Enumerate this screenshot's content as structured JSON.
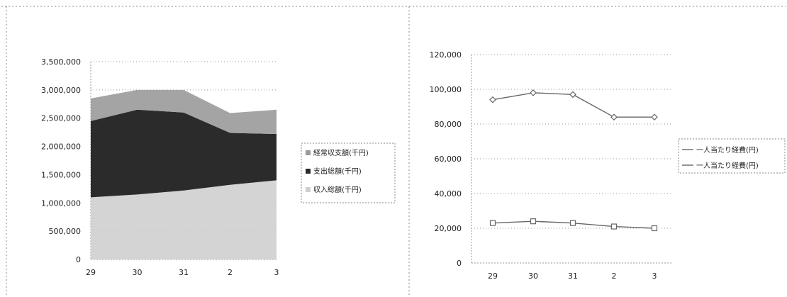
{
  "chart_data": [
    {
      "type": "area",
      "stacked": true,
      "categories": [
        "29",
        "30",
        "31",
        "2",
        "3"
      ],
      "ylim": [
        0,
        3500000
      ],
      "yticks": [
        "0",
        "500,000",
        "1,000,000",
        "1,500,000",
        "2,000,000",
        "2,500,000",
        "3,000,000",
        "3,500,000"
      ],
      "grid": true,
      "legend_position": "right",
      "series": [
        {
          "name": "収入総額(千円)",
          "values": [
            1100000,
            1150000,
            1220000,
            1320000,
            1400000
          ],
          "color": "#cfcfcf"
        },
        {
          "name": "支出総額(千円)",
          "values": [
            1350000,
            1500000,
            1380000,
            920000,
            820000
          ],
          "color": "#2b2b2b"
        },
        {
          "name": "経常収支額(千円)",
          "values": [
            400000,
            350000,
            400000,
            350000,
            430000
          ],
          "color": "#9a9a9a"
        }
      ]
    },
    {
      "type": "line",
      "categories": [
        "29",
        "30",
        "31",
        "2",
        "3"
      ],
      "ylim": [
        0,
        120000
      ],
      "yticks": [
        "0",
        "20,000",
        "40,000",
        "60,000",
        "80,000",
        "100,000",
        "120,000"
      ],
      "grid": true,
      "legend_position": "right",
      "series": [
        {
          "name": "一人当たり経費(円)",
          "values": [
            94000,
            98000,
            97000,
            84000,
            84000
          ],
          "color": "#666666",
          "marker": "diamond"
        },
        {
          "name": "一人当たり経費(円)",
          "values": [
            23000,
            24000,
            23000,
            21000,
            20000
          ],
          "color": "#666666",
          "marker": "square"
        }
      ]
    }
  ]
}
